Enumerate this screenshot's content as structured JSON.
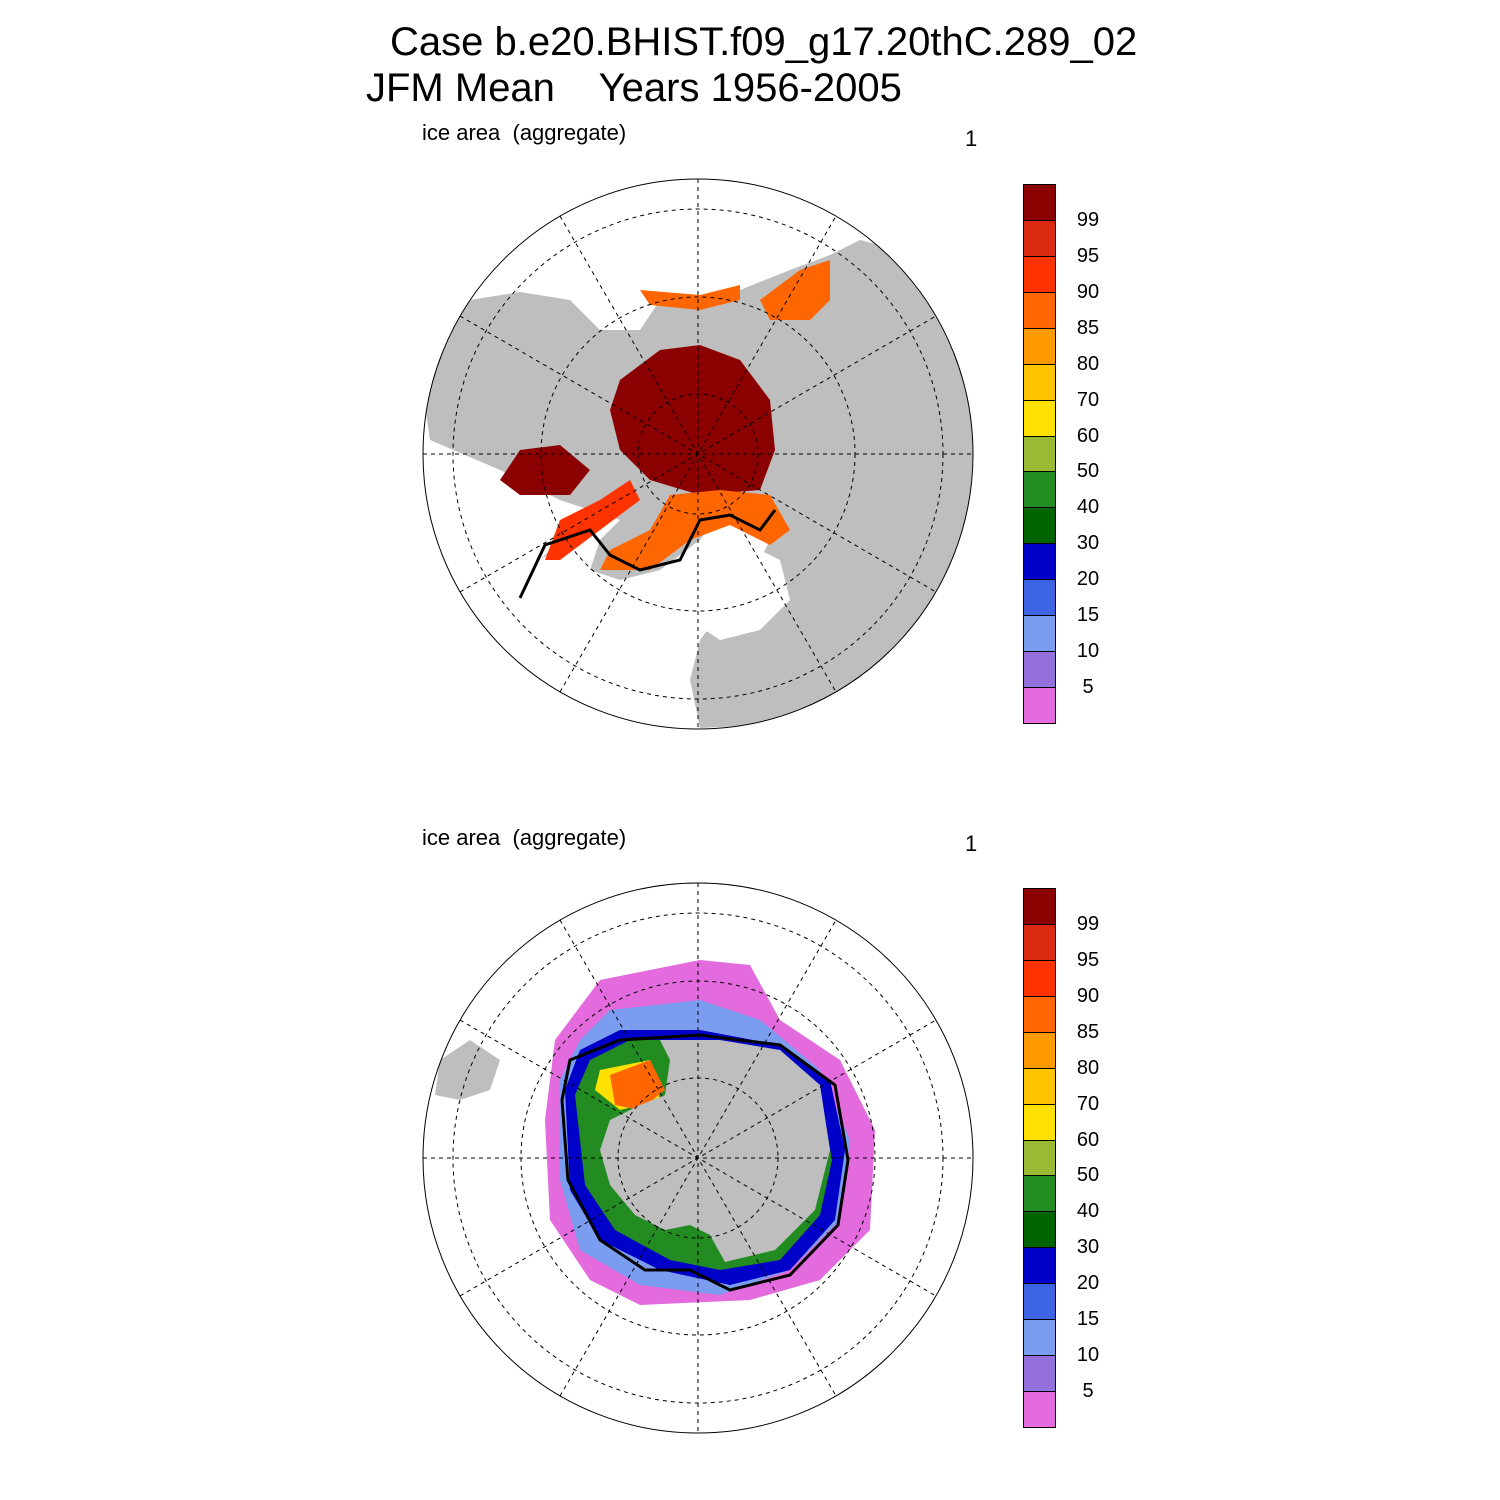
{
  "header": {
    "title_line1": "Case b.e20.BHIST.f09_g17.20thC.289_02",
    "title_line2": "JFM Mean    Years 1956-2005"
  },
  "panels": [
    {
      "id": "north",
      "label": "ice area  (aggregate)",
      "number": "1"
    },
    {
      "id": "south",
      "label": "ice area  (aggregate)",
      "number": "1"
    }
  ],
  "colorbar": {
    "colors": [
      "#e36bdd",
      "#9370db",
      "#7b9df0",
      "#3d65e3",
      "#0000c8",
      "#006400",
      "#228b22",
      "#9aba34",
      "#ffe000",
      "#ffc400",
      "#ff9a00",
      "#ff6600",
      "#ff3300",
      "#dc2a12",
      "#8b0000"
    ],
    "labels": [
      "5",
      "10",
      "15",
      "20",
      "30",
      "40",
      "50",
      "60",
      "70",
      "80",
      "85",
      "90",
      "95",
      "99"
    ]
  },
  "map_colors": {
    "land": "#bebebe",
    "ocean": "#ffffff",
    "grid": "#000000"
  },
  "chart_data": {
    "type": "heatmap",
    "variable": "ice area  (aggregate)",
    "period": "JFM Mean    Years 1956-2005",
    "contour_levels": [
      5,
      10,
      15,
      20,
      30,
      40,
      50,
      60,
      70,
      80,
      85,
      90,
      95,
      99
    ],
    "maps": [
      "north",
      "south"
    ]
  }
}
